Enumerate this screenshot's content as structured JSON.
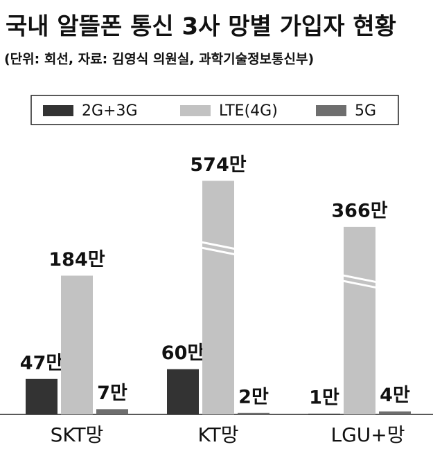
{
  "chart_data": {
    "type": "bar",
    "title": "국내 알뜰폰 통신 3사 망별 가입자 현황",
    "subtitle": "(단위: 회선, 자료: 김영식 의원실, 과학기술정보통신부)",
    "categories": [
      "SKT망",
      "KT망",
      "LGU+망"
    ],
    "series": [
      {
        "name": "2G+3G",
        "color": "#333333",
        "values": [
          47,
          60,
          1
        ],
        "value_labels": [
          "47만",
          "60만",
          "1만"
        ]
      },
      {
        "name": "LTE(4G)",
        "color": "#c2c2c2",
        "values": [
          184,
          574,
          366
        ],
        "value_labels": [
          "184만",
          "574만",
          "366만"
        ]
      },
      {
        "name": "5G",
        "color": "#6e6e6e",
        "values": [
          7,
          2,
          4
        ],
        "value_labels": [
          "7만",
          "2만",
          "4만"
        ]
      }
    ],
    "legend": "top"
  }
}
